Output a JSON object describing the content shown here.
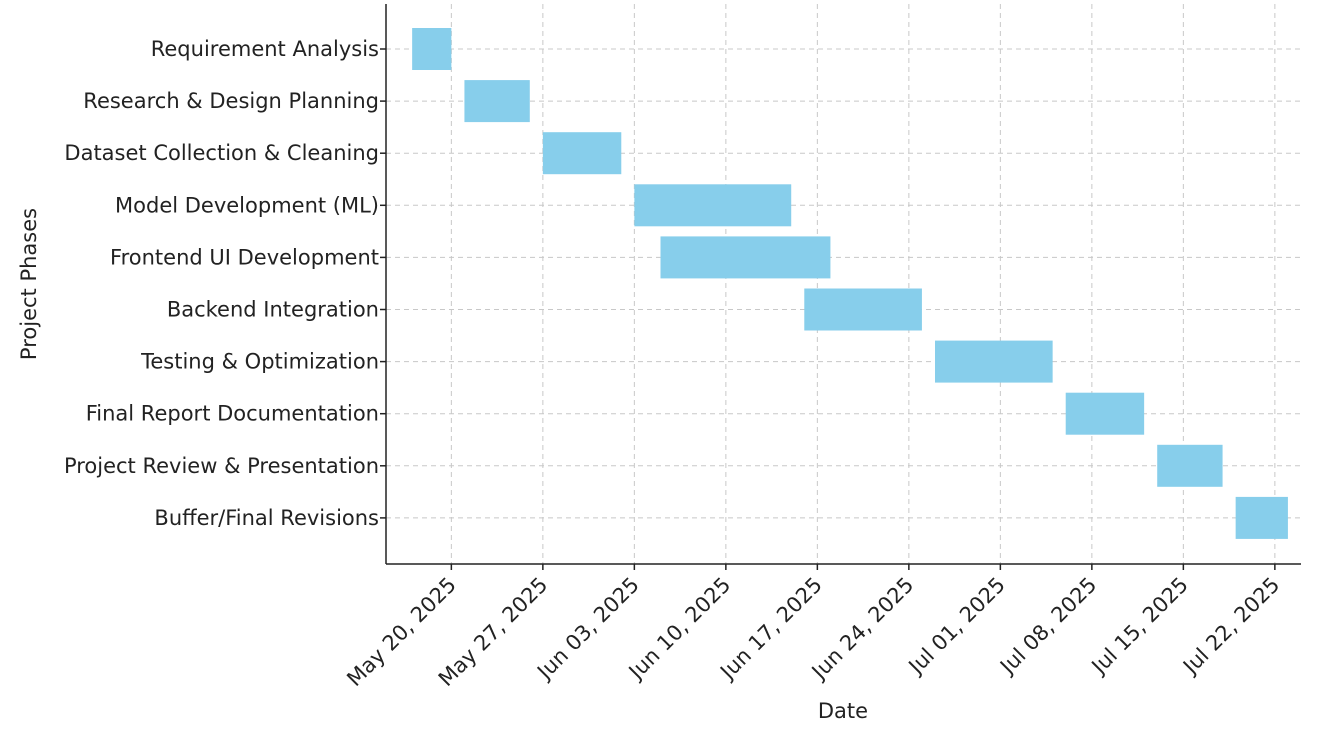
{
  "chart_data": {
    "type": "gantt",
    "title": "",
    "xlabel": "Date",
    "ylabel": "Project Phases",
    "x_type": "date",
    "x_range": [
      "2025-05-15",
      "2025-07-24"
    ],
    "x_ticks": [
      "2025-05-20",
      "2025-05-27",
      "2025-06-03",
      "2025-06-10",
      "2025-06-17",
      "2025-06-24",
      "2025-07-01",
      "2025-07-08",
      "2025-07-15",
      "2025-07-22"
    ],
    "x_tick_labels": [
      "May 20, 2025",
      "May 27, 2025",
      "Jun 03, 2025",
      "Jun 10, 2025",
      "Jun 17, 2025",
      "Jun 24, 2025",
      "Jul 01, 2025",
      "Jul 08, 2025",
      "Jul 15, 2025",
      "Jul 22, 2025"
    ],
    "grid": true,
    "bar_color": "#87ceeb",
    "tasks": [
      {
        "name": "Requirement Analysis",
        "start": "2025-05-17",
        "end": "2025-05-20"
      },
      {
        "name": "Research & Design Planning",
        "start": "2025-05-21",
        "end": "2025-05-26"
      },
      {
        "name": "Dataset Collection & Cleaning",
        "start": "2025-05-27",
        "end": "2025-06-02"
      },
      {
        "name": "Model Development (ML)",
        "start": "2025-06-03",
        "end": "2025-06-15"
      },
      {
        "name": "Frontend UI Development",
        "start": "2025-06-05",
        "end": "2025-06-18"
      },
      {
        "name": "Backend Integration",
        "start": "2025-06-16",
        "end": "2025-06-25"
      },
      {
        "name": "Testing & Optimization",
        "start": "2025-06-26",
        "end": "2025-07-05"
      },
      {
        "name": "Final Report Documentation",
        "start": "2025-07-06",
        "end": "2025-07-12"
      },
      {
        "name": "Project Review & Presentation",
        "start": "2025-07-13",
        "end": "2025-07-18"
      },
      {
        "name": "Buffer/Final Revisions",
        "start": "2025-07-19",
        "end": "2025-07-23"
      }
    ]
  }
}
